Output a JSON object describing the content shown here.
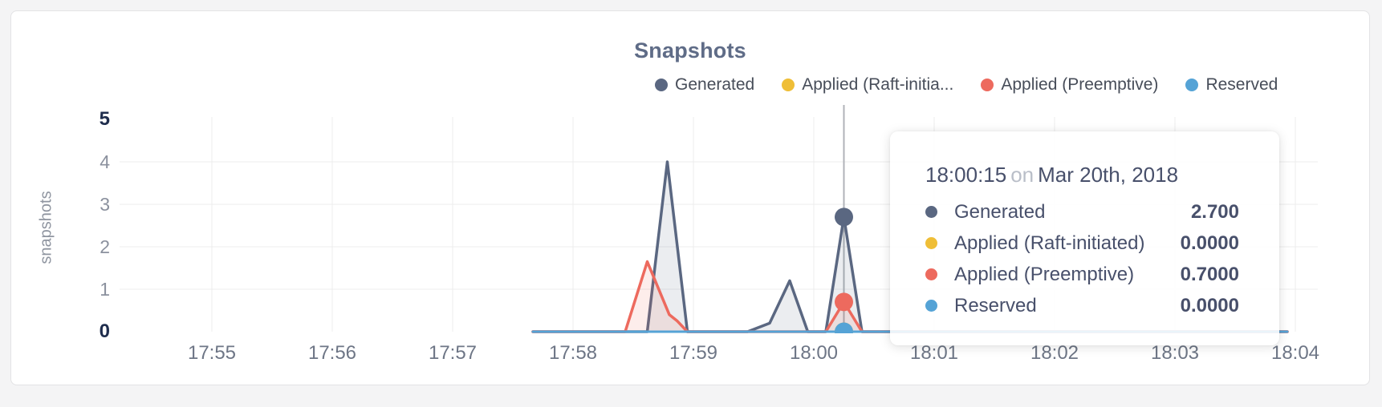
{
  "page": {
    "background": "#f4f4f5"
  },
  "card": {
    "background": "#ffffff",
    "border_color": "#e3e3e5"
  },
  "chart": {
    "title": "Snapshots",
    "title_color": "#5f6c87",
    "y_axis_label": "snapshots"
  },
  "legend": {
    "items": [
      {
        "label": "Generated",
        "color": "#5a6781"
      },
      {
        "label": "Applied (Raft-initia...",
        "color": "#efbe37"
      },
      {
        "label": "Applied (Preemptive)",
        "color": "#ed6a5e"
      },
      {
        "label": "Reserved",
        "color": "#55a3d6"
      }
    ]
  },
  "chart_data": {
    "type": "line",
    "title": "Snapshots",
    "xlabel": "",
    "ylabel": "snapshots",
    "ylim": [
      0,
      5
    ],
    "grid": true,
    "legend_position": "top-right",
    "x_unit": "seconds after 17:55:00",
    "xticks": [
      {
        "label": "17:55",
        "t": 0
      },
      {
        "label": "17:56",
        "t": 60
      },
      {
        "label": "17:57",
        "t": 120
      },
      {
        "label": "17:58",
        "t": 180
      },
      {
        "label": "17:59",
        "t": 240
      },
      {
        "label": "18:00",
        "t": 300
      },
      {
        "label": "18:01",
        "t": 360
      },
      {
        "label": "18:02",
        "t": 420
      },
      {
        "label": "18:03",
        "t": 480
      },
      {
        "label": "18:04",
        "t": 540
      }
    ],
    "yticks": [
      {
        "label": "0",
        "v": 0,
        "emphasis": true
      },
      {
        "label": "1",
        "v": 1,
        "emphasis": false
      },
      {
        "label": "2",
        "v": 2,
        "emphasis": false
      },
      {
        "label": "3",
        "v": 3,
        "emphasis": false
      },
      {
        "label": "4",
        "v": 4,
        "emphasis": false
      },
      {
        "label": "5",
        "v": 5,
        "emphasis": true
      }
    ],
    "series": [
      {
        "name": "Generated",
        "color": "#5a6781",
        "fill": "rgba(90,103,129,0.12)",
        "width": 3.5,
        "points": [
          [
            160,
            0
          ],
          [
            217,
            0
          ],
          [
            227,
            4.0
          ],
          [
            237,
            0
          ],
          [
            267,
            0
          ],
          [
            278,
            0.2
          ],
          [
            288,
            1.2
          ],
          [
            297,
            0
          ],
          [
            306,
            0
          ],
          [
            315,
            2.7
          ],
          [
            324,
            0
          ],
          [
            536,
            0
          ]
        ]
      },
      {
        "name": "Applied (Raft-initiated)",
        "color": "#efbe37",
        "fill": "none",
        "width": 3,
        "points": [
          [
            160,
            0
          ],
          [
            536,
            0
          ]
        ]
      },
      {
        "name": "Applied (Preemptive)",
        "color": "#ed6a5e",
        "fill": "rgba(237,106,94,0.12)",
        "width": 3.5,
        "points": [
          [
            160,
            0
          ],
          [
            206,
            0
          ],
          [
            217,
            1.65
          ],
          [
            228,
            0.4
          ],
          [
            232,
            0.25
          ],
          [
            237,
            0
          ],
          [
            306,
            0
          ],
          [
            315,
            0.7
          ],
          [
            324,
            0
          ],
          [
            536,
            0
          ]
        ]
      },
      {
        "name": "Reserved",
        "color": "#55a3d6",
        "fill": "none",
        "width": 3,
        "points": [
          [
            160,
            0
          ],
          [
            536,
            0
          ]
        ]
      }
    ],
    "hover": {
      "t": 315,
      "dots": [
        {
          "series": "Generated",
          "v": 2.7
        },
        {
          "series": "Applied (Raft-initiated)",
          "v": 0
        },
        {
          "series": "Applied (Preemptive)",
          "v": 0.7
        },
        {
          "series": "Reserved",
          "v": 0
        }
      ]
    },
    "colors": {
      "grid": "#ececec",
      "axis_tick": "#6e7686",
      "axis_tick_emphasis": "#1f2d4d",
      "hover_line": "#b0b3b8"
    }
  },
  "tooltip": {
    "time": "18:00:15",
    "conjunction": "on",
    "date": "Mar 20th, 2018",
    "rows": [
      {
        "label": "Generated",
        "color": "#5a6781",
        "value": "2.700"
      },
      {
        "label": "Applied (Raft-initiated)",
        "color": "#efbe37",
        "value": "0.0000"
      },
      {
        "label": "Applied (Preemptive)",
        "color": "#ed6a5e",
        "value": "0.7000"
      },
      {
        "label": "Reserved",
        "color": "#55a3d6",
        "value": "0.0000"
      }
    ]
  }
}
